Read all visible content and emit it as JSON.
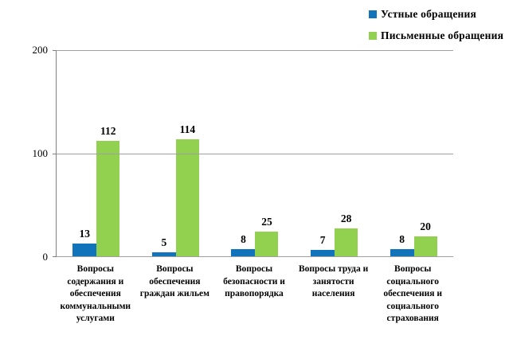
{
  "legend": {
    "items": [
      {
        "label": "Устные обращения",
        "color": "#1173b9"
      },
      {
        "label": "Письменные обращения",
        "color": "#92d050"
      }
    ]
  },
  "chart_data": {
    "type": "bar",
    "title": "",
    "xlabel": "",
    "ylabel": "",
    "categories": [
      "Вопросы содержания и обеспечения коммунальными услугами",
      "Вопросы обеспечения граждан жильем",
      "Вопросы безопасности и правопорядка",
      "Вопросы труда и занятости населения",
      "Вопросы социального обеспечения и социального страхования"
    ],
    "series": [
      {
        "name": "Устные обращения",
        "color": "#1173b9",
        "values": [
          13,
          5,
          8,
          7,
          8
        ]
      },
      {
        "name": "Письменные обращения",
        "color": "#92d050",
        "values": [
          112,
          114,
          25,
          28,
          20
        ]
      }
    ],
    "ylim": [
      0,
      200
    ],
    "yticks": [
      0,
      100,
      200
    ],
    "grid": true,
    "legend_position": "top-right",
    "data_labels": true
  }
}
